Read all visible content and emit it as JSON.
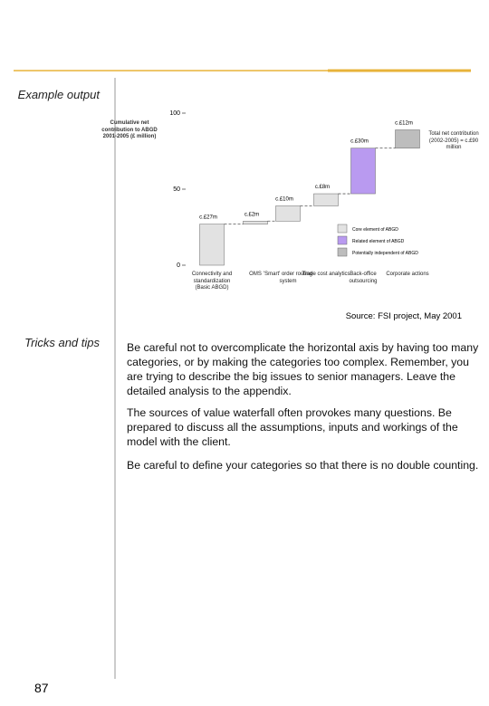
{
  "sidebar": {
    "example_label": "Example output",
    "tips_label": "Tricks and tips",
    "page_number": "87"
  },
  "chart_data": {
    "type": "waterfall",
    "y_label": "Cumulative net contribution to ABGD 2001-2005 (£ million)",
    "annotation": "Total net contribution (2002-2005) = c.£90 million",
    "categories": [
      "Connectivity and standardization (Basic ABGD)",
      "OMS",
      "'Smart' order routing system",
      "Trade cost analytics",
      "Back-office outsourcing",
      "Corporate actions"
    ],
    "values": [
      27,
      2,
      10,
      8,
      30,
      12
    ],
    "value_labels": [
      "c.£27m",
      "c.£2m",
      "c.£10m",
      "c.£8m",
      "c.£30m",
      "c.£12m"
    ],
    "colors": [
      "#e2e2e2",
      "#e2e2e2",
      "#e2e2e2",
      "#e2e2e2",
      "#b99af0",
      "#bdbdbd"
    ],
    "ylim": [
      0,
      100
    ],
    "yticks": [
      0,
      50,
      100
    ],
    "legend": [
      {
        "label": "Core element of ABGD",
        "color": "#e2e2e2"
      },
      {
        "label": "Related element of ABGD",
        "color": "#b99af0"
      },
      {
        "label": "Potentially independent of ABGD",
        "color": "#bdbdbd"
      }
    ]
  },
  "source": "Source: FSI project, May 2001",
  "tips": [
    "Be careful not to overcomplicate the horizontal axis by having too many categories, or by making the categories too complex. Remember, you are trying to describe the big issues to senior managers. Leave the detailed analysis to the appendix.",
    "The sources of value waterfall often provokes many questions. Be prepared to discuss all the assumptions, inputs and workings of the model with the client.",
    "Be careful to define your categories so that there is no double counting."
  ]
}
